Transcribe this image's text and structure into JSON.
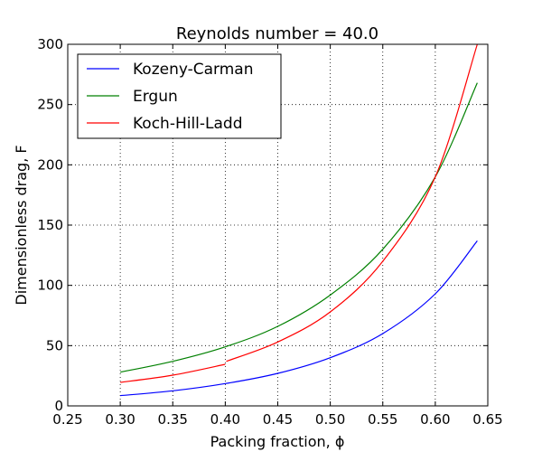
{
  "chart_data": {
    "type": "line",
    "title": "Reynolds number = 40.0",
    "xlabel": "Packing fraction, ϕ",
    "ylabel": "Dimensionless drag, F",
    "xlim": [
      0.25,
      0.65
    ],
    "ylim": [
      0,
      300
    ],
    "xticks": [
      "0.25",
      "0.30",
      "0.35",
      "0.40",
      "0.45",
      "0.50",
      "0.55",
      "0.60",
      "0.65"
    ],
    "yticks": [
      "0",
      "50",
      "100",
      "150",
      "200",
      "250",
      "300"
    ],
    "grid": true,
    "legend_position": "top-left",
    "series": [
      {
        "name": "Kozeny-Carman",
        "color": "#0000ff",
        "x": [
          0.3,
          0.35,
          0.4,
          0.45,
          0.5,
          0.55,
          0.6,
          0.64
        ],
        "y": [
          8.5,
          12.5,
          18.5,
          27,
          40,
          60,
          93,
          137
        ]
      },
      {
        "name": "Ergun",
        "color": "#008000",
        "x": [
          0.3,
          0.35,
          0.4,
          0.45,
          0.5,
          0.55,
          0.6,
          0.64
        ],
        "y": [
          28,
          37,
          49,
          66,
          92,
          130,
          190,
          268
        ]
      },
      {
        "name": "Koch-Hill-Ladd",
        "segments": [
          {
            "x": [
              0.3,
              0.35,
              0.4
            ],
            "y": [
              19.5,
              25.5,
              34.5
            ]
          },
          {
            "x": [
              0.401,
              0.45,
              0.5,
              0.55,
              0.6,
              0.64
            ],
            "y": [
              37,
              53,
              78,
              120,
              190,
              300
            ]
          }
        ],
        "color": "#ff0000"
      }
    ]
  }
}
